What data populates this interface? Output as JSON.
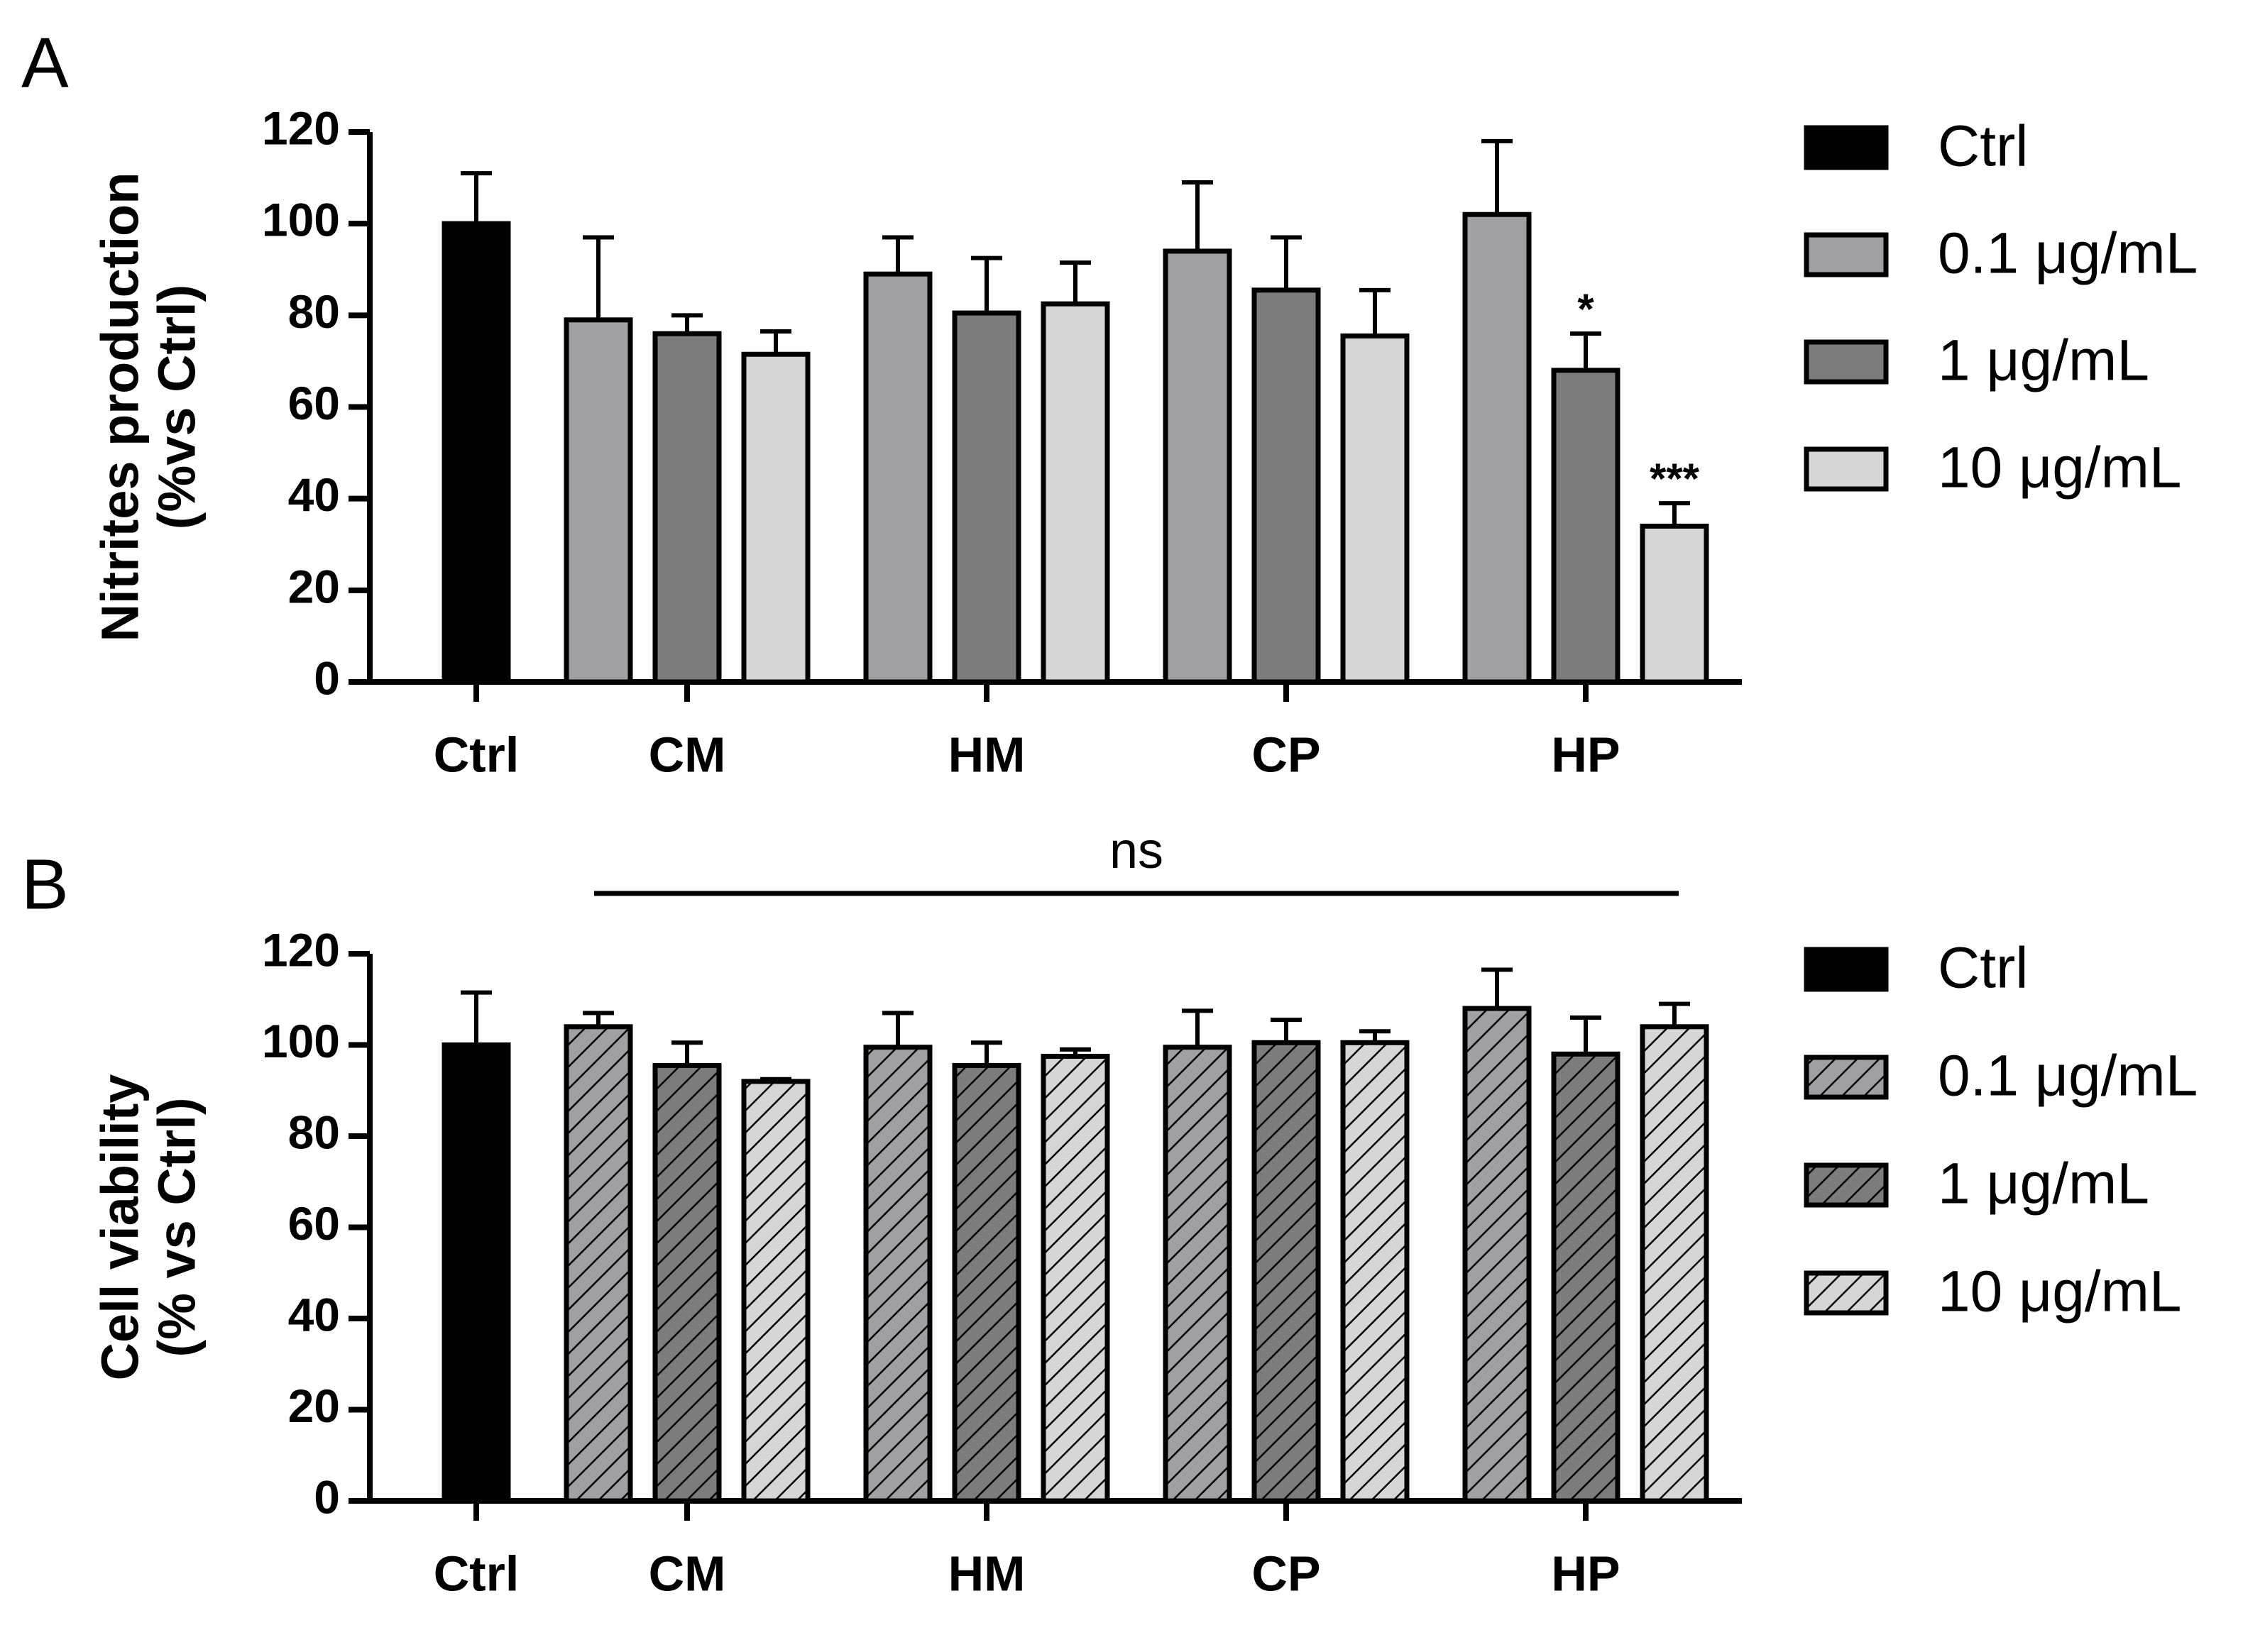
{
  "chart_data": [
    {
      "type": "bar",
      "panel": "A",
      "ylabel": [
        "Nitrites production",
        "(%vs Ctrl)"
      ],
      "categories": [
        "Ctrl",
        "CM",
        "HM",
        "CP",
        "HP"
      ],
      "ylim": [
        0,
        120
      ],
      "yticks": [
        0,
        20,
        40,
        60,
        80,
        100,
        120
      ],
      "hatch": false,
      "series": [
        {
          "name": "Ctrl",
          "color": "#000000",
          "values": [
            100,
            null,
            null,
            null,
            null
          ],
          "errors": [
            11,
            null,
            null,
            null,
            null
          ]
        },
        {
          "name": "0.1 μg/mL",
          "color": "#a0a0a4",
          "values": [
            null,
            79,
            89,
            94,
            102
          ],
          "errors": [
            null,
            18,
            8,
            15,
            16
          ]
        },
        {
          "name": "1 μg/mL",
          "color": "#7c7c7c",
          "values": [
            null,
            76,
            80.5,
            85.5,
            68
          ],
          "errors": [
            null,
            4,
            12,
            11.5,
            8
          ],
          "significance": [
            null,
            null,
            null,
            null,
            "*"
          ]
        },
        {
          "name": "10 μg/mL",
          "color": "#d6d6d6",
          "values": [
            null,
            71.5,
            82.5,
            75.5,
            34
          ],
          "errors": [
            null,
            5,
            9,
            10,
            5
          ],
          "significance": [
            null,
            null,
            null,
            null,
            "***"
          ]
        }
      ]
    },
    {
      "type": "bar",
      "panel": "B",
      "ylabel": [
        "Cell viability",
        "(% vs Ctrl)"
      ],
      "categories": [
        "Ctrl",
        "CM",
        "HM",
        "CP",
        "HP"
      ],
      "ylim": [
        0,
        120
      ],
      "yticks": [
        0,
        20,
        40,
        60,
        80,
        100,
        120
      ],
      "hatch": true,
      "annotation": "ns",
      "series": [
        {
          "name": "Ctrl",
          "color": "#000000",
          "values": [
            100,
            null,
            null,
            null,
            null
          ],
          "errors": [
            11.5,
            null,
            null,
            null,
            null
          ]
        },
        {
          "name": "0.1 μg/mL",
          "color": "#a0a0a4",
          "values": [
            null,
            104,
            99.5,
            99.5,
            108
          ],
          "errors": [
            null,
            3,
            7.5,
            8,
            8.5
          ]
        },
        {
          "name": "1 μg/mL",
          "color": "#7c7c7c",
          "values": [
            null,
            95.5,
            95.5,
            100.5,
            98
          ],
          "errors": [
            null,
            5,
            5,
            5,
            8
          ]
        },
        {
          "name": "10 μg/mL",
          "color": "#d6d6d6",
          "values": [
            null,
            92,
            97.5,
            100.5,
            104
          ],
          "errors": [
            null,
            0.5,
            1.5,
            2.5,
            5
          ]
        }
      ]
    }
  ]
}
